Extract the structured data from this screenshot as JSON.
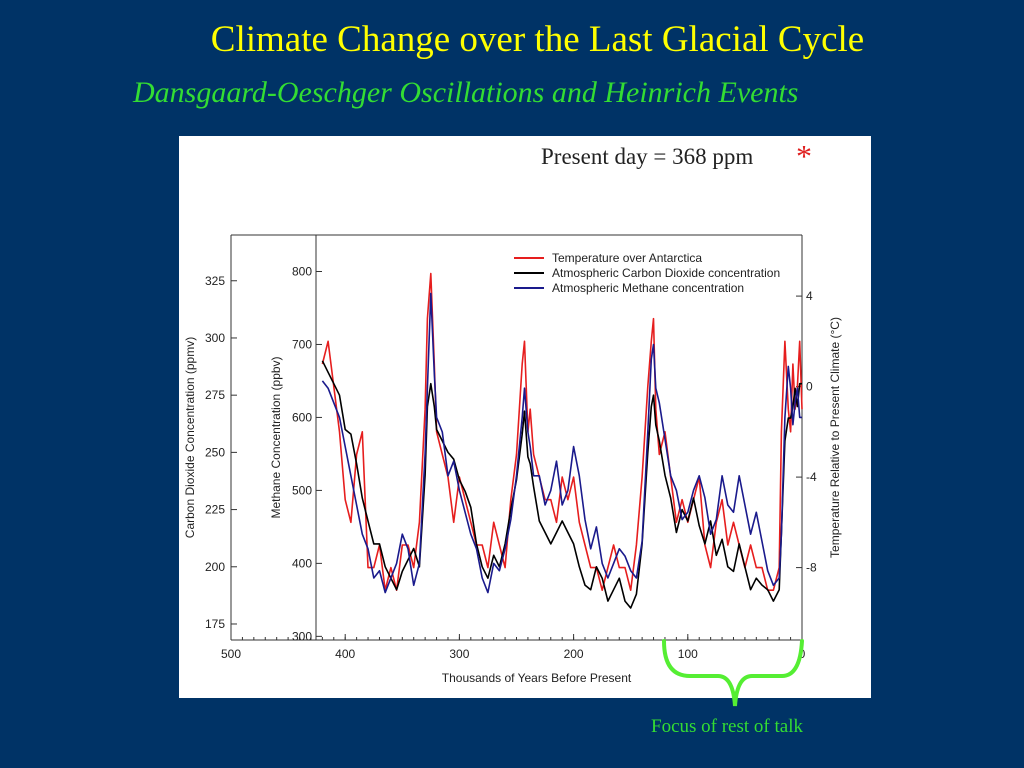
{
  "slide": {
    "title": "Climate Change over the Last Glacial Cycle",
    "subtitle": "Dansgaard-Oeschger Oscillations and Heinrich Events",
    "present_day": "Present day = 368 ppm",
    "star": "*",
    "focus_note": "Focus of rest of talk"
  },
  "colors": {
    "background": "#003366",
    "title": "#ffff00",
    "subtitle": "#33dd33",
    "temperature": "#e61e1e",
    "co2": "#000000",
    "methane": "#1a1a8c",
    "brace": "#55ee33"
  },
  "chart_data": {
    "type": "line",
    "xlabel": "Thousands of Years Before Present",
    "xlim": [
      500,
      0
    ],
    "x_ticks": [
      500,
      400,
      300,
      200,
      100,
      0
    ],
    "left_axis": {
      "label": "Carbon Dioxide Concentration (ppmv)",
      "range": [
        168,
        345
      ],
      "ticks": [
        175,
        200,
        225,
        250,
        275,
        300,
        325
      ]
    },
    "inner_axis": {
      "label": "Methane Concentration (ppbv)",
      "range": [
        295,
        850
      ],
      "ticks": [
        300,
        400,
        500,
        600,
        700,
        800
      ]
    },
    "right_axis": {
      "label": "Temperature Relative to Present Climate (°C)",
      "range": [
        -11.2,
        6.7
      ],
      "ticks": [
        4,
        0,
        -4,
        -8
      ]
    },
    "legend_position": "top-right",
    "series": [
      {
        "name": "Temperature over Antarctica",
        "axis": "right_axis",
        "x": [
          420,
          415,
          410,
          405,
          400,
          395,
          390,
          385,
          380,
          375,
          370,
          365,
          360,
          355,
          350,
          345,
          340,
          335,
          330,
          328,
          325,
          322,
          320,
          315,
          310,
          305,
          300,
          295,
          290,
          285,
          280,
          275,
          270,
          265,
          260,
          255,
          250,
          245,
          243,
          240,
          238,
          235,
          230,
          225,
          220,
          215,
          210,
          205,
          200,
          195,
          190,
          185,
          180,
          175,
          170,
          165,
          160,
          155,
          150,
          145,
          140,
          135,
          132,
          130,
          128,
          125,
          120,
          115,
          110,
          105,
          100,
          95,
          90,
          85,
          80,
          75,
          70,
          65,
          60,
          55,
          50,
          45,
          40,
          35,
          30,
          25,
          20,
          18,
          15,
          12,
          10,
          8,
          6,
          4,
          2,
          0
        ],
        "y": [
          1,
          2,
          0,
          -2,
          -5,
          -6,
          -3,
          -2,
          -8,
          -8,
          -7,
          -9,
          -8,
          -9,
          -7,
          -7,
          -8,
          -6,
          -1,
          3,
          5,
          1,
          -2,
          -3,
          -4,
          -6,
          -4,
          -5,
          -6,
          -7,
          -7,
          -8,
          -6,
          -7,
          -8,
          -5,
          -3,
          1,
          2,
          -2,
          -1,
          -3,
          -4,
          -5,
          -5,
          -6,
          -4,
          -5,
          -4,
          -6,
          -7,
          -8,
          -8,
          -9,
          -8,
          -7,
          -8,
          -8,
          -9,
          -7,
          -4,
          0,
          2,
          3,
          -1,
          -3,
          -2,
          -4,
          -6,
          -5,
          -6,
          -5,
          -4,
          -7,
          -8,
          -6,
          -5,
          -7,
          -6,
          -7,
          -8,
          -7,
          -8,
          -8,
          -9,
          -9,
          -8,
          -2,
          2,
          -1,
          -2,
          1,
          -1,
          0,
          2,
          -1
        ]
      },
      {
        "name": "Atmospheric Carbon Dioxide concentration",
        "axis": "left_axis",
        "x": [
          420,
          415,
          410,
          405,
          400,
          395,
          390,
          385,
          380,
          375,
          370,
          365,
          360,
          355,
          350,
          345,
          340,
          335,
          330,
          328,
          325,
          322,
          320,
          315,
          310,
          305,
          300,
          295,
          290,
          285,
          280,
          275,
          270,
          265,
          260,
          255,
          250,
          245,
          243,
          240,
          238,
          235,
          230,
          225,
          220,
          215,
          210,
          205,
          200,
          195,
          190,
          185,
          180,
          175,
          170,
          165,
          160,
          155,
          150,
          145,
          140,
          135,
          132,
          130,
          128,
          125,
          120,
          115,
          110,
          105,
          100,
          95,
          90,
          85,
          80,
          75,
          70,
          65,
          60,
          55,
          50,
          45,
          40,
          35,
          30,
          25,
          20,
          18,
          15,
          12,
          10,
          8,
          6,
          4,
          2,
          0
        ],
        "y": [
          290,
          285,
          280,
          275,
          260,
          258,
          245,
          230,
          220,
          210,
          210,
          200,
          195,
          190,
          198,
          203,
          208,
          200,
          240,
          270,
          280,
          270,
          260,
          255,
          250,
          247,
          238,
          233,
          226,
          210,
          200,
          195,
          205,
          200,
          210,
          225,
          238,
          258,
          268,
          248,
          245,
          235,
          220,
          215,
          210,
          215,
          220,
          215,
          210,
          200,
          192,
          190,
          200,
          195,
          185,
          190,
          195,
          185,
          182,
          188,
          210,
          250,
          270,
          275,
          262,
          255,
          240,
          230,
          215,
          225,
          220,
          230,
          218,
          210,
          220,
          205,
          212,
          200,
          198,
          210,
          200,
          190,
          195,
          192,
          190,
          185,
          190,
          215,
          255,
          265,
          265,
          270,
          278,
          270,
          280,
          280
        ]
      },
      {
        "name": "Atmospheric Methane concentration",
        "axis": "inner_axis",
        "x": [
          420,
          415,
          410,
          405,
          400,
          395,
          390,
          385,
          380,
          375,
          370,
          365,
          360,
          355,
          350,
          345,
          340,
          335,
          330,
          328,
          325,
          322,
          320,
          315,
          310,
          305,
          300,
          295,
          290,
          285,
          280,
          275,
          270,
          265,
          260,
          255,
          250,
          245,
          243,
          240,
          238,
          235,
          230,
          225,
          220,
          215,
          210,
          205,
          200,
          195,
          190,
          185,
          180,
          175,
          170,
          165,
          160,
          155,
          150,
          145,
          140,
          135,
          132,
          130,
          128,
          125,
          120,
          115,
          110,
          105,
          100,
          95,
          90,
          85,
          80,
          75,
          70,
          65,
          60,
          55,
          50,
          45,
          40,
          35,
          30,
          25,
          20,
          18,
          15,
          12,
          10,
          8,
          6,
          4,
          2,
          0
        ],
        "y": [
          650,
          640,
          620,
          600,
          560,
          520,
          480,
          440,
          420,
          380,
          390,
          360,
          380,
          400,
          440,
          420,
          370,
          400,
          550,
          640,
          770,
          660,
          600,
          580,
          520,
          540,
          500,
          470,
          440,
          420,
          380,
          360,
          400,
          390,
          420,
          460,
          520,
          600,
          640,
          580,
          560,
          520,
          520,
          480,
          500,
          540,
          480,
          500,
          560,
          520,
          460,
          420,
          450,
          400,
          380,
          400,
          420,
          410,
          390,
          380,
          430,
          580,
          680,
          700,
          640,
          620,
          570,
          520,
          500,
          460,
          470,
          500,
          520,
          490,
          440,
          460,
          520,
          480,
          470,
          520,
          480,
          440,
          470,
          430,
          390,
          370,
          380,
          440,
          600,
          670,
          640,
          590,
          620,
          640,
          600,
          600
        ]
      }
    ]
  }
}
